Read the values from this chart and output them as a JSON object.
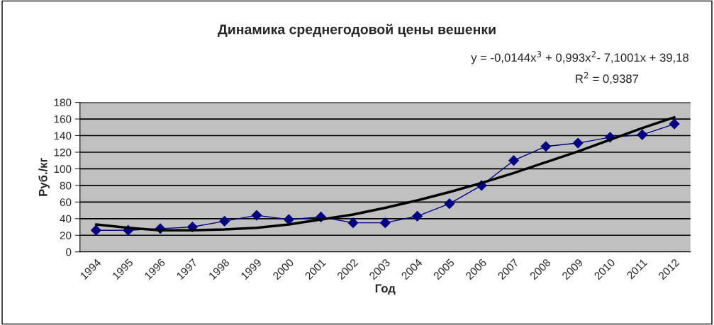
{
  "chart_data": {
    "type": "line",
    "title": "Динамика среднегодовой цены вешенки",
    "xlabel": "Год",
    "ylabel": "Руб./кг",
    "categories": [
      "1994",
      "1995",
      "1996",
      "1997",
      "1998",
      "1999",
      "2000",
      "2001",
      "2002",
      "2003",
      "2004",
      "2005",
      "2006",
      "2007",
      "2008",
      "2009",
      "2010",
      "2011",
      "2012"
    ],
    "series": [
      {
        "color": "#000080",
        "marker": "diamond",
        "values": [
          26,
          26,
          28,
          30,
          37,
          44,
          39,
          42,
          35,
          35,
          43,
          58,
          80,
          110,
          127,
          131,
          138,
          141,
          154
        ]
      },
      {
        "color": "#000000",
        "marker": "none",
        "values": [
          33,
          29,
          26,
          26,
          27,
          29,
          33,
          39,
          45,
          53,
          62,
          72,
          83,
          95,
          108,
          121,
          135,
          149,
          162
        ]
      }
    ],
    "annotations": [
      "y = -0,0144x$^{3}$ + 0,993x$^{2}$- 7,1001x + 39,18",
      "R$^{2}$ = 0,9387"
    ],
    "ylim": [
      0,
      180
    ],
    "yticks": [
      0,
      20,
      40,
      60,
      80,
      100,
      120,
      140,
      160,
      180
    ],
    "grid": "y",
    "line_style": "solid"
  }
}
